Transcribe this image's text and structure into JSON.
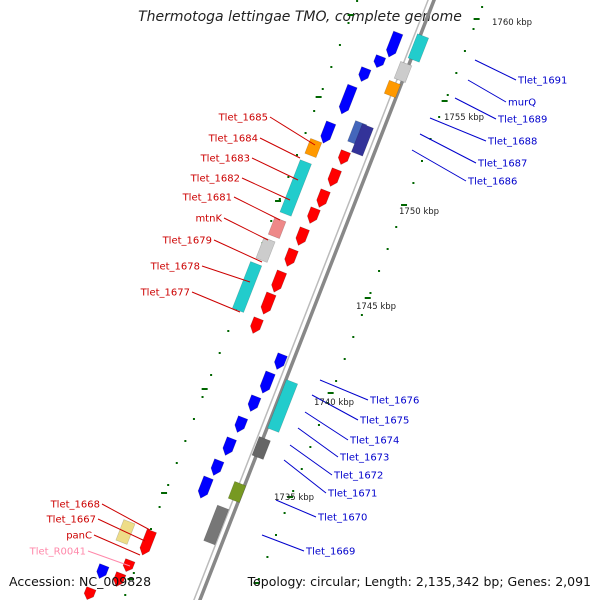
{
  "title": "Thermotoga lettingae TMO, complete genome",
  "accession": "Accession: NC_009828",
  "topology": "Topology: circular; Length: 2,135,342 bp; Genes: 2,091",
  "colors": {
    "reverse_cds": "#ff0000",
    "forward_cds": "#0000ff",
    "forward_label": "#0000cc",
    "reverse_label": "#cc0000",
    "rna_label": "#ff88aa",
    "backbone": "#888888",
    "tick": "#006600"
  },
  "kbp_labels": [
    "1760 kbp",
    "1755 kbp",
    "1750 kbp",
    "1745 kbp",
    "1740 kbp",
    "1735 kbp"
  ],
  "left_labels": [
    "Tlet_1685",
    "Tlet_1684",
    "Tlet_1683",
    "Tlet_1682",
    "Tlet_1681",
    "mtnK",
    "Tlet_1679",
    "Tlet_1678",
    "Tlet_1677",
    "Tlet_1668",
    "Tlet_1667",
    "panC",
    "Tlet_R0041"
  ],
  "right_labels": [
    "Tlet_1691",
    "murQ",
    "Tlet_1689",
    "Tlet_1688",
    "Tlet_1687",
    "Tlet_1686",
    "Tlet_1676",
    "Tlet_1675",
    "Tlet_1674",
    "Tlet_1673",
    "Tlet_1672",
    "Tlet_1671",
    "Tlet_1670",
    "Tlet_1669"
  ]
}
